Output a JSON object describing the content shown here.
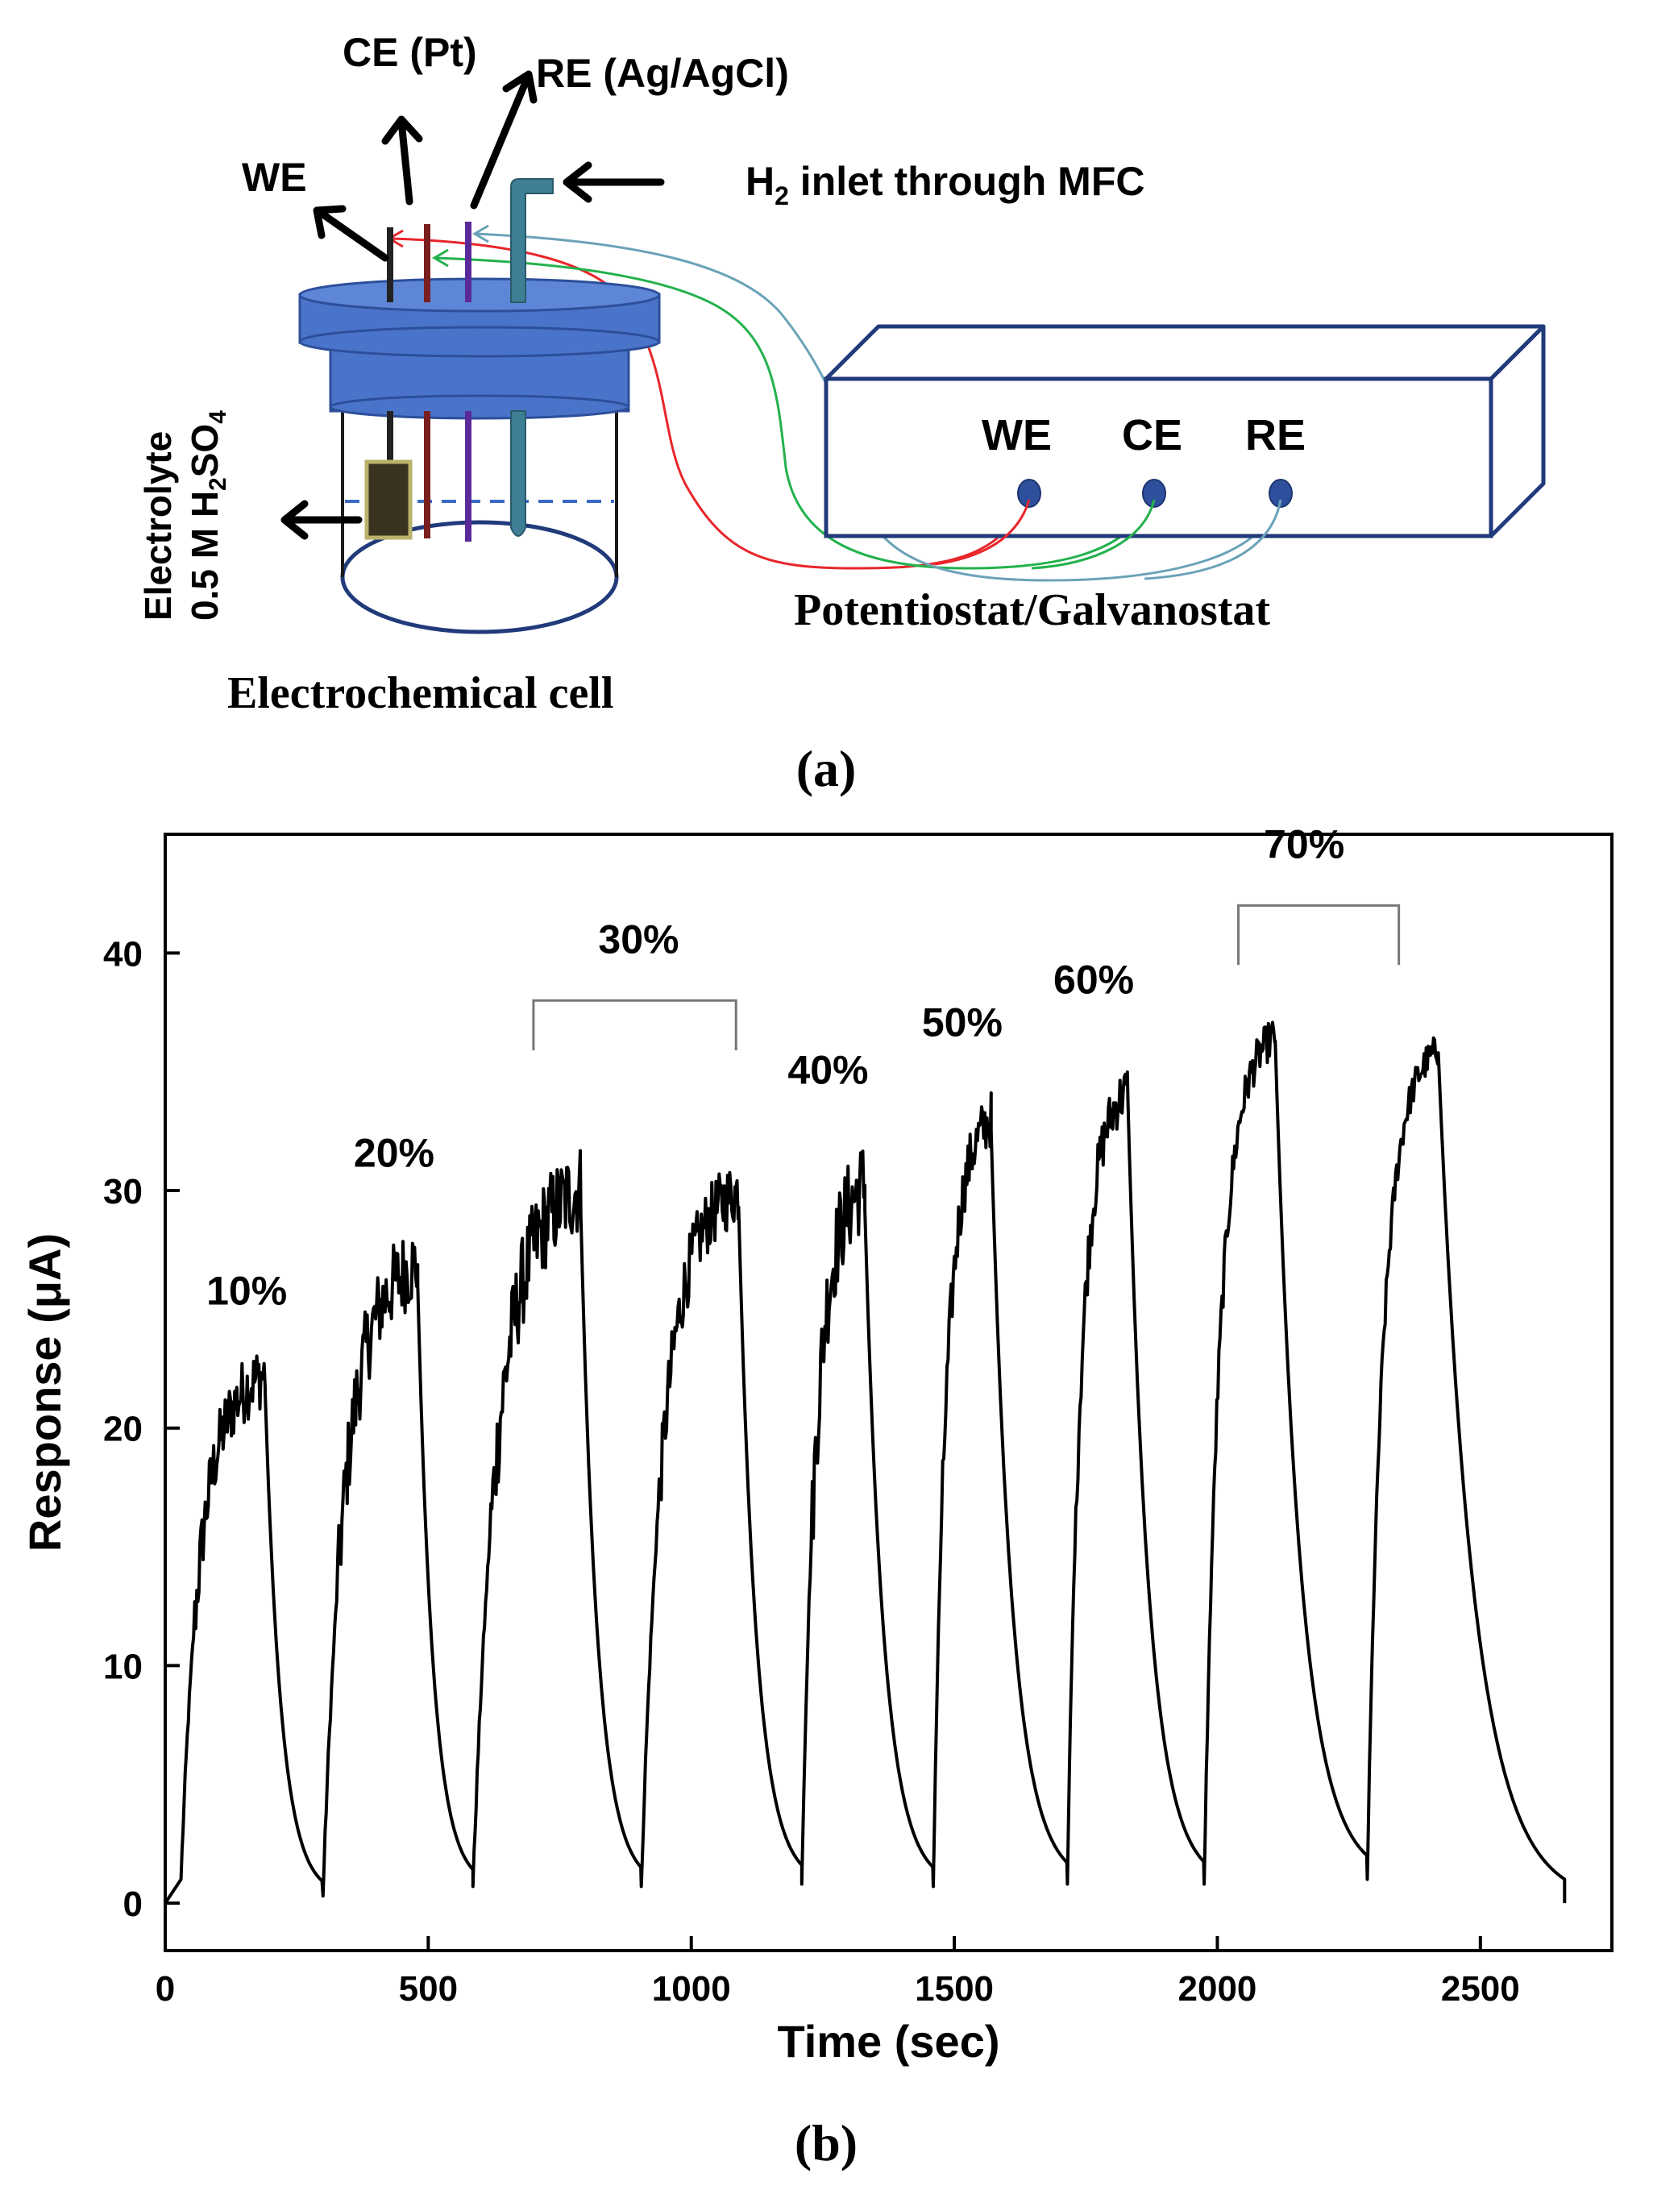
{
  "figure_a": {
    "labels": {
      "ce": "CE (Pt)",
      "re": "RE (Ag/AgCl)",
      "we": "WE",
      "h2_prefix": "H",
      "h2_sub": "2",
      "h2_suffix": " inlet through MFC",
      "electrolyte_line1": "Electrolyte",
      "electrolyte_line2_a": "0.5 M H",
      "electrolyte_line2_sub1": "2",
      "electrolyte_line2_b": "SO",
      "electrolyte_line2_sub2": "4",
      "cell": "Electrochemical cell",
      "instrument": "Potentiostat/Galvanostat",
      "terminal_we": "WE",
      "terminal_ce": "CE",
      "terminal_re": "RE"
    },
    "panel_label": "(a)",
    "colors": {
      "cap": "#4a74c9",
      "cap_edge": "#2d4f9a",
      "box": "#203a7a",
      "red": "#e8262b",
      "green": "#23b14d",
      "blue": "#6aa2b8"
    }
  },
  "figure_b": {
    "panel_label": "(b)",
    "chart_data": {
      "type": "line",
      "title": "",
      "xlabel": "Time (sec)",
      "ylabel": "Response (μA)",
      "xlim": [
        0,
        2750
      ],
      "ylim": [
        -2,
        45
      ],
      "xticks": [
        0,
        500,
        1000,
        1500,
        2000,
        2500
      ],
      "yticks": [
        0,
        10,
        20,
        30,
        40
      ],
      "grid": false,
      "pulses": [
        {
          "on": 30,
          "off": 190,
          "start": 1.0,
          "level": 21.5,
          "peak": 23.5,
          "end": 0.3
        },
        {
          "on": 300,
          "off": 480,
          "start": 0.3,
          "level": 26.0,
          "peak": 28.5,
          "end": 0.7
        },
        {
          "on": 585,
          "off": 790,
          "start": 0.7,
          "level": 29.0,
          "peak": 31.8,
          "end": 0.7
        },
        {
          "on": 905,
          "off": 1090,
          "start": 0.7,
          "level": 29.3,
          "peak": 31.3,
          "end": 0.8
        },
        {
          "on": 1210,
          "off": 1330,
          "start": 0.8,
          "level": 29.2,
          "peak": 32.0,
          "end": 0.7
        },
        {
          "on": 1460,
          "off": 1570,
          "start": 0.7,
          "level": 32.5,
          "peak": 34.2,
          "end": 0.8
        },
        {
          "on": 1715,
          "off": 1830,
          "start": 0.8,
          "level": 33.8,
          "peak": 35.4,
          "end": 0.8
        },
        {
          "on": 1975,
          "off": 2110,
          "start": 0.8,
          "level": 36.3,
          "peak": 37.5,
          "end": 1.0
        },
        {
          "on": 2285,
          "off": 2420,
          "start": 1.0,
          "level": 35.8,
          "peak": 36.8,
          "end": 0.0
        }
      ],
      "end_time": 2660,
      "annotations": [
        {
          "text": "10%",
          "x": 155,
          "y": 25.2
        },
        {
          "text": "20%",
          "x": 435,
          "y": 31.0
        },
        {
          "text": "30%",
          "x": 900,
          "y": 40.0
        },
        {
          "text": "40%",
          "x": 1260,
          "y": 34.5
        },
        {
          "text": "50%",
          "x": 1515,
          "y": 36.5
        },
        {
          "text": "60%",
          "x": 1765,
          "y": 38.3
        },
        {
          "text": "70%",
          "x": 2165,
          "y": 44.0
        }
      ],
      "brackets": [
        {
          "x1": 700,
          "x2": 1085,
          "y": 38.0,
          "drop": 2.1
        },
        {
          "x1": 2040,
          "x2": 2345,
          "y": 42.0,
          "drop": 2.5
        }
      ]
    }
  }
}
